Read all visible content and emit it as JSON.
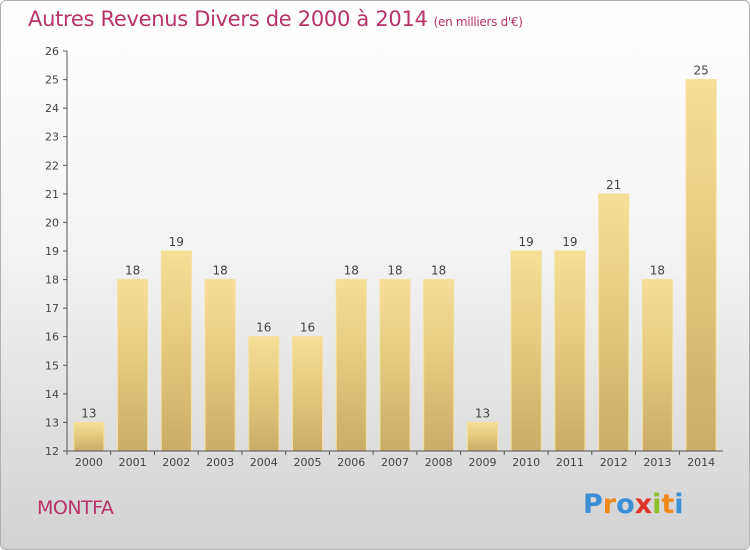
{
  "chart_data": {
    "type": "bar",
    "title": "Autres Revenus Divers de 2000 à 2014",
    "subtitle": "(en milliers d'€)",
    "xlabel": "",
    "ylabel": "",
    "categories": [
      "2000",
      "2001",
      "2002",
      "2003",
      "2004",
      "2005",
      "2006",
      "2007",
      "2008",
      "2009",
      "2010",
      "2011",
      "2012",
      "2013",
      "2014"
    ],
    "values": [
      13,
      18,
      19,
      18,
      16,
      16,
      18,
      18,
      18,
      13,
      19,
      19,
      21,
      18,
      25
    ],
    "ylim": [
      12,
      26
    ],
    "yticks": [
      12,
      13,
      14,
      15,
      16,
      17,
      18,
      19,
      20,
      21,
      22,
      23,
      24,
      25,
      26
    ],
    "grid": false,
    "legend": "none",
    "bar_color": "#e6ca80",
    "bar_color_light": "#f6df98",
    "bar_color_dark": "#c9ad68",
    "axis_color": "#555555"
  },
  "footer": {
    "place": "MONTFA",
    "brand_letters": [
      {
        "ch": "P",
        "color": "#3b8fd6"
      },
      {
        "ch": "r",
        "color": "#f08a1c"
      },
      {
        "ch": "o",
        "color": "#3b8fd6"
      },
      {
        "ch": "x",
        "color": "#e0322c"
      },
      {
        "ch": "i",
        "color": "#8cbf2a"
      },
      {
        "ch": "t",
        "color": "#f08a1c"
      },
      {
        "ch": "i",
        "color": "#3b8fd6"
      }
    ]
  },
  "colors": {
    "title": "#b8336a",
    "text": "#444444"
  }
}
